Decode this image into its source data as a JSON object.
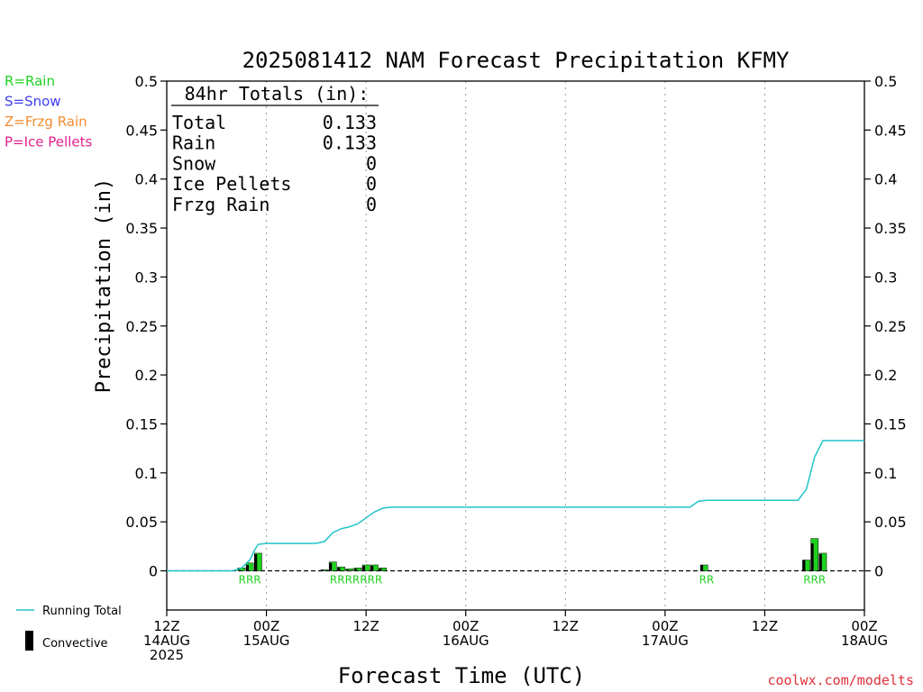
{
  "chart_data": {
    "type": "bar",
    "title": "2025081412 NAM Forecast Precipitation KFMY",
    "xlabel": "Forecast Time (UTC)",
    "ylabel": "Precipitation (in)",
    "ylim": [
      -0.04,
      0.5
    ],
    "yticks": [
      0,
      0.05,
      0.1,
      0.15,
      0.2,
      0.25,
      0.3,
      0.35,
      0.4,
      0.45,
      0.5
    ],
    "ytick_labels": [
      "0",
      "0.05",
      "0.1",
      "0.15",
      "0.2",
      "0.25",
      "0.3",
      "0.35",
      "0.4",
      "0.45",
      "0.5"
    ],
    "xlim_hours": [
      0,
      84
    ],
    "grid": "vertical dotted at each 12h",
    "xticks": [
      {
        "hour": 0,
        "lines": [
          "12Z",
          "14AUG",
          "2025"
        ]
      },
      {
        "hour": 12,
        "lines": [
          "00Z",
          "15AUG"
        ]
      },
      {
        "hour": 24,
        "lines": [
          "12Z"
        ]
      },
      {
        "hour": 36,
        "lines": [
          "00Z",
          "16AUG"
        ]
      },
      {
        "hour": 48,
        "lines": [
          "12Z"
        ]
      },
      {
        "hour": 60,
        "lines": [
          "00Z",
          "17AUG"
        ]
      },
      {
        "hour": 72,
        "lines": [
          "12Z"
        ]
      },
      {
        "hour": 84,
        "lines": [
          "00Z",
          "18AUG"
        ]
      }
    ],
    "precip_bars": [
      {
        "hour": 9.0,
        "total": 0.003,
        "convective": 0.001
      },
      {
        "hour": 10.0,
        "total": 0.008,
        "convective": 0.006
      },
      {
        "hour": 11.0,
        "total": 0.018,
        "convective": 0.017
      },
      {
        "hour": 19.0,
        "total": 0.001,
        "convective": 0.001
      },
      {
        "hour": 20.0,
        "total": 0.009,
        "convective": 0.008
      },
      {
        "hour": 21.0,
        "total": 0.004,
        "convective": 0.003
      },
      {
        "hour": 22.0,
        "total": 0.002,
        "convective": 0.001
      },
      {
        "hour": 23.0,
        "total": 0.003,
        "convective": 0.002
      },
      {
        "hour": 24.0,
        "total": 0.006,
        "convective": 0.005
      },
      {
        "hour": 25.0,
        "total": 0.006,
        "convective": 0.005
      },
      {
        "hour": 26.0,
        "total": 0.003,
        "convective": 0.002
      },
      {
        "hour": 64.7,
        "total": 0.006,
        "convective": 0.006
      },
      {
        "hour": 77.0,
        "total": 0.011,
        "convective": 0.011
      },
      {
        "hour": 78.0,
        "total": 0.033,
        "convective": 0.028
      },
      {
        "hour": 79.0,
        "total": 0.018,
        "convective": 0.017
      }
    ],
    "precip_type_labels": [
      {
        "hour": 10.0,
        "text": "RRR"
      },
      {
        "hour": 22.8,
        "text": "RRRRRRR"
      },
      {
        "hour": 65.0,
        "text": "RR"
      },
      {
        "hour": 78.0,
        "text": "RRR"
      }
    ],
    "running_total": {
      "hours": [
        0,
        8,
        9,
        10,
        10.5,
        11,
        12,
        13,
        14,
        16,
        18,
        19,
        20,
        21,
        22,
        23,
        24,
        25,
        26,
        27,
        30,
        40,
        50,
        60,
        63,
        64,
        65,
        70,
        72,
        76,
        77,
        78,
        79,
        80,
        84
      ],
      "values": [
        0,
        0,
        0.003,
        0.011,
        0.02,
        0.027,
        0.028,
        0.028,
        0.028,
        0.028,
        0.028,
        0.03,
        0.039,
        0.043,
        0.045,
        0.048,
        0.054,
        0.06,
        0.064,
        0.065,
        0.065,
        0.065,
        0.065,
        0.065,
        0.065,
        0.071,
        0.072,
        0.072,
        0.072,
        0.072,
        0.083,
        0.116,
        0.133,
        0.133,
        0.133
      ]
    },
    "colors": {
      "rain": "#1fd11f",
      "snow": "#3c3cf0",
      "frzg_rain": "#f08c32",
      "ice_pellets": "#e11e8c",
      "running_total": "#21c4c9",
      "convective": "#000000",
      "precip_bar": "#1fd11f"
    }
  },
  "type_key": [
    {
      "text": "R=Rain",
      "color": "#1fd11f"
    },
    {
      "text": "S=Snow",
      "color": "#3c3cf0"
    },
    {
      "text": "Z=Frzg Rain",
      "color": "#f08c32"
    },
    {
      "text": "P=Ice Pellets",
      "color": "#e11e8c"
    }
  ],
  "totals_box": {
    "heading": "84hr Totals (in):",
    "rows": [
      {
        "label": "Total",
        "value": "0.133"
      },
      {
        "label": "Rain",
        "value": "0.133"
      },
      {
        "label": "Snow",
        "value": "0"
      },
      {
        "label": "Ice Pellets",
        "value": "0"
      },
      {
        "label": "Frzg Rain",
        "value": "0"
      }
    ]
  },
  "legend": {
    "running_total": "Running Total",
    "convective": "Convective"
  },
  "credit": "coolwx.com/modelts"
}
